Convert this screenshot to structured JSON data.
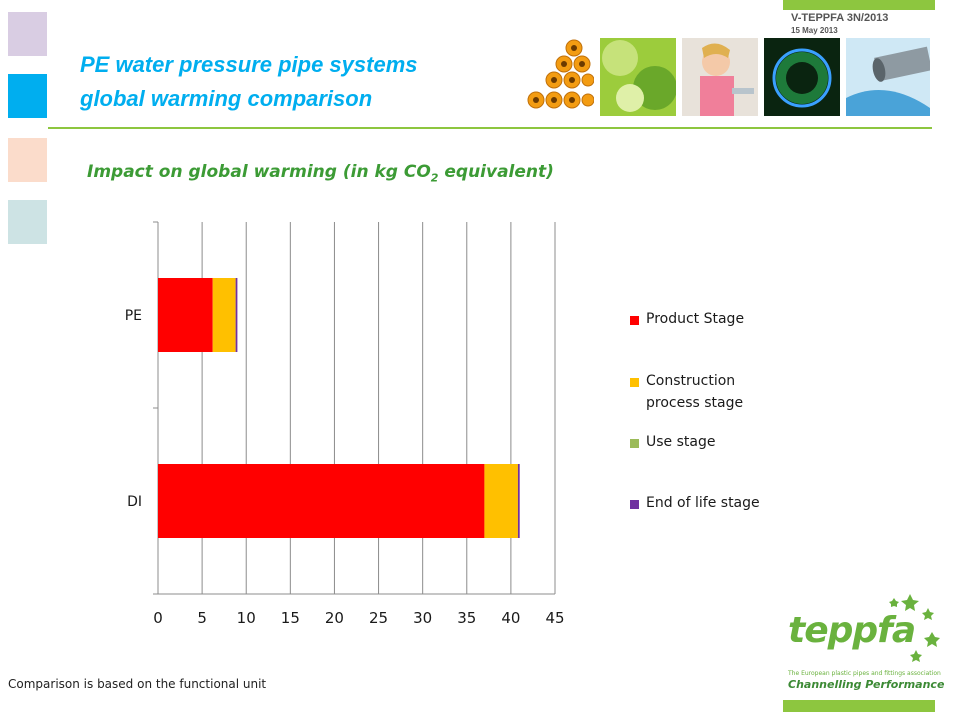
{
  "header": {
    "doc_ref": "V-TEPPFA 3N/2013",
    "date": "15 May 2013",
    "title_line1": "PE water pressure pipe systems",
    "title_line2": "global warming comparison"
  },
  "colors": {
    "accent_blue": "#00aeef",
    "accent_green": "#8dc63f",
    "product_stage": "#ff0000",
    "construction_stage": "#ffc000",
    "use_stage": "#9bbb59",
    "end_of_life_stage": "#7030a0"
  },
  "chart_data": {
    "type": "bar",
    "orientation": "horizontal",
    "stacked": true,
    "title": "Impact on global warming (in kg CO2 equivalent)",
    "title_prefix": "Impact on global warming (in kg CO",
    "title_subscript": "2",
    "title_suffix": " equivalent)",
    "categories": [
      "PE",
      "DI"
    ],
    "series": [
      {
        "name": "Product Stage",
        "values": [
          6.2,
          37.0
        ],
        "color": "#ff0000"
      },
      {
        "name": "Construction process stage",
        "values": [
          2.6,
          3.8
        ],
        "color": "#ffc000"
      },
      {
        "name": "Use stage",
        "values": [
          0,
          0
        ],
        "color": "#9bbb59"
      },
      {
        "name": "End of life stage",
        "values": [
          0.2,
          0.2
        ],
        "color": "#7030a0"
      }
    ],
    "xlim": [
      0,
      45
    ],
    "xticks": [
      0,
      5,
      10,
      15,
      20,
      25,
      30,
      35,
      40,
      45
    ],
    "grid": "vertical",
    "legend_position": "right",
    "xlabel": "",
    "ylabel": ""
  },
  "legend": [
    {
      "label": "Product Stage",
      "color": "#ff0000"
    },
    {
      "label": "Construction process stage",
      "color": "#ffc000"
    },
    {
      "label": "Use stage",
      "color": "#9bbb59"
    },
    {
      "label": "End of life stage",
      "color": "#7030a0"
    }
  ],
  "footer": {
    "note": "Comparison is based on the functional unit"
  },
  "logo": {
    "name": "teppfa",
    "tagline": "The European plastic pipes and fittings association",
    "slogan": "Channelling Performance"
  },
  "images": [
    {
      "name": "orange-pipes-photo"
    },
    {
      "name": "green-leaves-photo"
    },
    {
      "name": "child-tap-photo"
    },
    {
      "name": "gas-flame-photo"
    },
    {
      "name": "water-pipe-photo"
    }
  ]
}
